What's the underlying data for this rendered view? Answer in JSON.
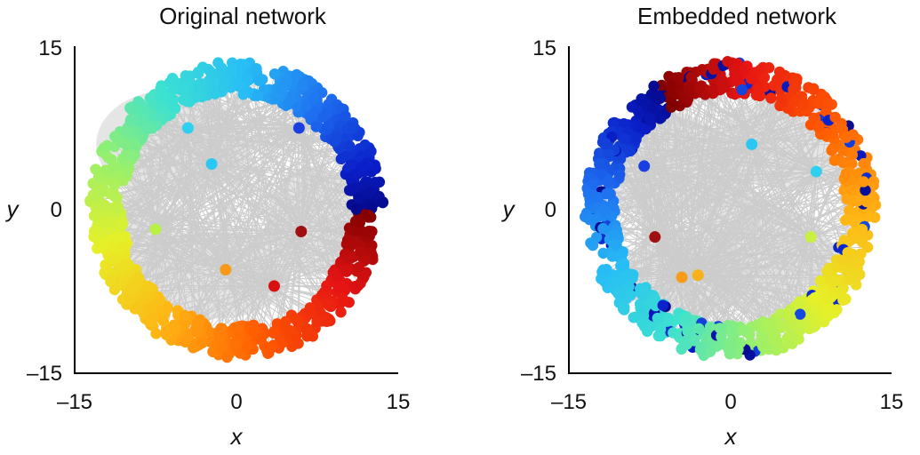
{
  "chart_data": [
    {
      "type": "scatter",
      "title": "Original network",
      "xlabel": "x",
      "ylabel": "y",
      "xlim": [
        -15,
        15
      ],
      "ylim": [
        -15,
        15
      ],
      "xticks": [
        "–15",
        "0",
        "15"
      ],
      "yticks": [
        "15",
        "0",
        "–15"
      ],
      "grid": false,
      "legend": "none",
      "color_scale": "jet (hue by angular position)",
      "edge_color": "#cccccc",
      "hubs": [
        {
          "x": -2.3,
          "y": 4.2,
          "color": "#29c7f2"
        },
        {
          "x": 6.0,
          "y": -2.0,
          "color": "#a01010"
        },
        {
          "x": -1.0,
          "y": -5.5,
          "color": "#f79a1a"
        },
        {
          "x": -4.5,
          "y": 7.5,
          "color": "#2fd0ee"
        },
        {
          "x": 5.8,
          "y": 7.5,
          "color": "#1a3fe0"
        },
        {
          "x": -7.5,
          "y": -1.8,
          "color": "#b8f046"
        },
        {
          "x": 3.5,
          "y": -7.0,
          "color": "#d81010"
        }
      ]
    },
    {
      "type": "scatter",
      "title": "Embedded network",
      "xlabel": "x",
      "ylabel": "y",
      "xlim": [
        -15,
        15
      ],
      "ylim": [
        -15,
        15
      ],
      "xticks": [
        "–15",
        "0",
        "15"
      ],
      "yticks": [
        "15",
        "0",
        "–15"
      ],
      "grid": false,
      "legend": "none",
      "color_scale": "jet (same node colors as original, positions embedded)",
      "edge_color": "#cccccc",
      "hubs": [
        {
          "x": 2.0,
          "y": 6.0,
          "color": "#29c7f2"
        },
        {
          "x": -7.0,
          "y": -2.5,
          "color": "#a01010"
        },
        {
          "x": -4.5,
          "y": -6.2,
          "color": "#f79a1a"
        },
        {
          "x": -3.0,
          "y": -6.0,
          "color": "#f7b21a"
        },
        {
          "x": 7.5,
          "y": -2.5,
          "color": "#c8f040"
        },
        {
          "x": -8.0,
          "y": 4.0,
          "color": "#1a3fe0"
        },
        {
          "x": 8.0,
          "y": 3.5,
          "color": "#2fd0ee"
        }
      ]
    }
  ]
}
